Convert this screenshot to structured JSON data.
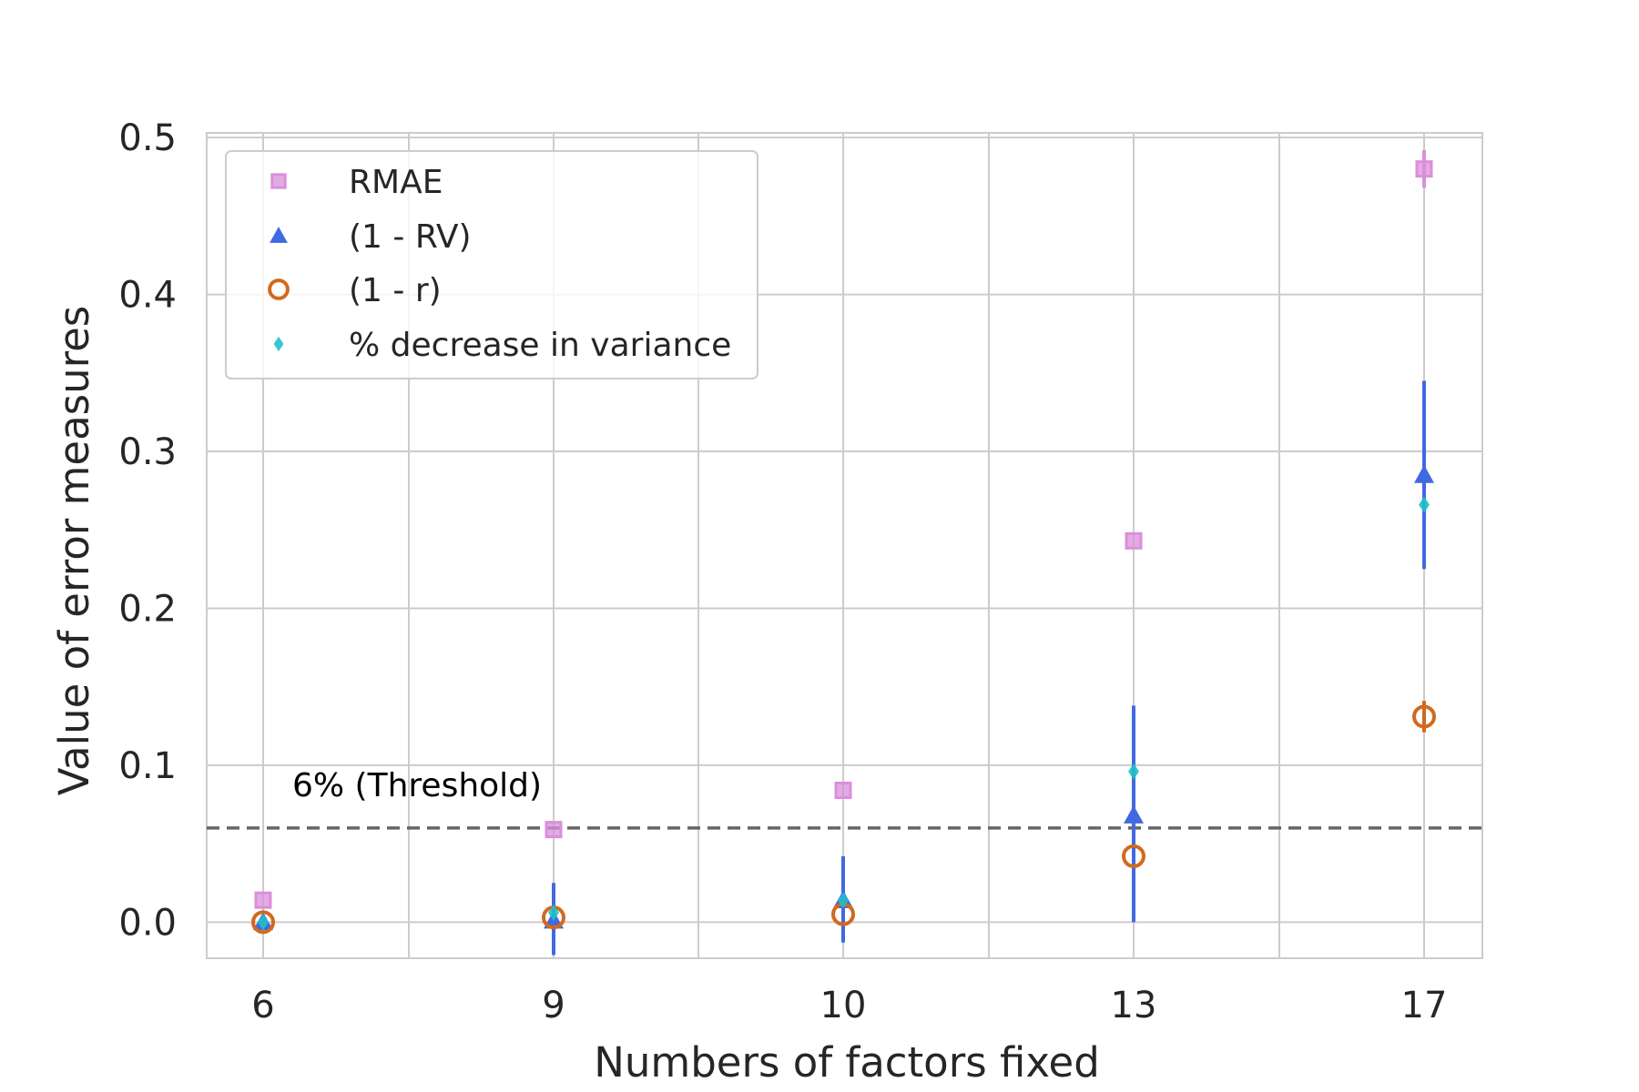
{
  "chart_data": {
    "type": "scatter",
    "xlabel": "Numbers of factors fixed",
    "ylabel": "Value of error measures",
    "categories": [
      "6",
      "9",
      "10",
      "13",
      "17"
    ],
    "ylim": [
      -0.023,
      0.503
    ],
    "yticks": [
      "0.0",
      "0.1",
      "0.2",
      "0.3",
      "0.4",
      "0.5"
    ],
    "ytick_values": [
      0.0,
      0.1,
      0.2,
      0.3,
      0.4,
      0.5
    ],
    "grid": true,
    "legend_position": "upper-left",
    "threshold": {
      "value": 0.06,
      "label": "6% (Threshold)",
      "color": "#666666"
    },
    "series": [
      {
        "name": "RMAE",
        "marker": "square",
        "color": "#DA8FDB",
        "values": [
          0.014,
          0.059,
          0.084,
          0.243,
          0.48
        ],
        "err_low": [
          0.014,
          0.059,
          0.084,
          0.243,
          0.468
        ],
        "err_high": [
          0.014,
          0.059,
          0.084,
          0.243,
          0.492
        ]
      },
      {
        "name": "(1 - RV)",
        "marker": "triangle",
        "color": "#4169E1",
        "values": [
          0.0,
          0.001,
          0.014,
          0.068,
          0.285
        ],
        "err_low": [
          0.0,
          -0.021,
          -0.013,
          0.0,
          0.225
        ],
        "err_high": [
          0.0,
          0.025,
          0.042,
          0.138,
          0.345
        ]
      },
      {
        "name": "(1 - r)",
        "marker": "circle",
        "color": "#D2691E",
        "values": [
          0.0,
          0.003,
          0.005,
          0.042,
          0.131
        ],
        "err_low": [
          0.0,
          0.003,
          0.005,
          0.042,
          0.121
        ],
        "err_high": [
          0.0,
          0.003,
          0.005,
          0.042,
          0.141
        ]
      },
      {
        "name": "% decrease in variance",
        "marker": "diamond",
        "color": "#20C0C8",
        "values": [
          0.0,
          0.006,
          0.014,
          0.096,
          0.266
        ],
        "err_low": [
          0.0,
          0.006,
          0.014,
          0.096,
          0.266
        ],
        "err_high": [
          0.0,
          0.006,
          0.014,
          0.096,
          0.266
        ]
      }
    ]
  }
}
